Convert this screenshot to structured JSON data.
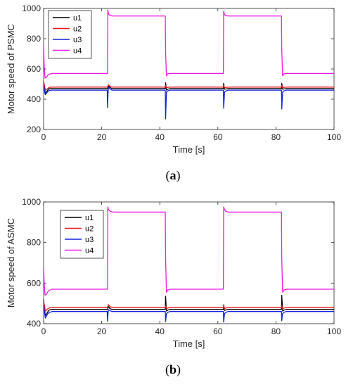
{
  "chart_data": [
    {
      "type": "line",
      "caption_letter": "a",
      "xlabel": "Time [s]",
      "ylabel": "Motor speed of PSMC",
      "xlim": [
        0,
        100
      ],
      "ylim": [
        200,
        1000
      ],
      "xticks": [
        "0",
        "20",
        "40",
        "60",
        "80",
        "100"
      ],
      "yticks": [
        "200",
        "400",
        "600",
        "800",
        "1000"
      ],
      "legend_position": "top-left",
      "grid": false,
      "series": [
        {
          "name": "u1",
          "color": "#000000",
          "x": [
            0,
            0.3,
            0.6,
            1.0,
            1.5,
            2.0,
            3.0,
            22.0,
            22.3,
            22.8,
            23.5,
            30,
            41.9,
            42.0,
            42.3,
            42.8,
            43.5,
            50,
            61.9,
            62.0,
            62.3,
            62.8,
            63.5,
            70,
            81.9,
            82.0,
            82.3,
            82.8,
            83.5,
            100
          ],
          "y": [
            520,
            470,
            440,
            450,
            462,
            470,
            470,
            470,
            490,
            478,
            470,
            470,
            470,
            510,
            460,
            466,
            470,
            470,
            470,
            505,
            466,
            468,
            470,
            470,
            470,
            505,
            466,
            468,
            470,
            470
          ]
        },
        {
          "name": "u2",
          "color": "#e8141c",
          "x": [
            0,
            0.3,
            0.6,
            1.0,
            1.5,
            2.0,
            3.0,
            22.0,
            22.3,
            22.8,
            23.5,
            30,
            41.9,
            42.0,
            42.3,
            42.8,
            43.5,
            50,
            61.9,
            62.0,
            62.3,
            62.8,
            63.5,
            70,
            81.9,
            82.0,
            82.3,
            82.8,
            83.5,
            100
          ],
          "y": [
            520,
            490,
            460,
            465,
            472,
            478,
            480,
            480,
            496,
            486,
            480,
            480,
            480,
            490,
            476,
            478,
            480,
            480,
            480,
            490,
            476,
            478,
            480,
            480,
            480,
            490,
            476,
            478,
            480,
            480
          ]
        },
        {
          "name": "u3",
          "color": "#1220e0",
          "x": [
            0,
            0.3,
            0.6,
            1.0,
            1.5,
            2.0,
            3.0,
            21.9,
            22.0,
            22.3,
            22.8,
            23.5,
            41.9,
            42.0,
            42.3,
            42.8,
            43.5,
            61.9,
            62.0,
            62.3,
            62.8,
            63.5,
            81.9,
            82.0,
            82.3,
            82.8,
            83.5,
            100
          ],
          "y": [
            500,
            455,
            430,
            440,
            452,
            458,
            460,
            460,
            345,
            480,
            468,
            460,
            460,
            270,
            448,
            455,
            460,
            460,
            340,
            448,
            455,
            460,
            460,
            335,
            448,
            455,
            460,
            460
          ]
        },
        {
          "name": "u4",
          "color": "#ee1be6",
          "x": [
            0,
            0.2,
            0.5,
            1.0,
            1.5,
            2.0,
            3.0,
            22.0,
            22.1,
            22.4,
            23.0,
            24.0,
            41.9,
            42.0,
            42.3,
            42.8,
            43.8,
            61.9,
            62.0,
            62.3,
            62.8,
            63.8,
            81.9,
            82.0,
            82.3,
            82.8,
            83.8,
            100
          ],
          "y": [
            760,
            620,
            540,
            545,
            560,
            566,
            570,
            570,
            990,
            962,
            952,
            950,
            950,
            710,
            555,
            568,
            570,
            570,
            980,
            960,
            952,
            950,
            950,
            720,
            555,
            568,
            570,
            570
          ]
        }
      ]
    },
    {
      "type": "line",
      "caption_letter": "b",
      "xlabel": "Time [s]",
      "ylabel": "Motor speed of ASMC",
      "xlim": [
        0,
        100
      ],
      "ylim": [
        400,
        1000
      ],
      "xticks": [
        "0",
        "20",
        "40",
        "60",
        "80",
        "100"
      ],
      "yticks": [
        "400",
        "600",
        "800",
        "1000"
      ],
      "legend_position": "top-left",
      "grid": false,
      "series": [
        {
          "name": "u1",
          "color": "#000000",
          "x": [
            0,
            0.3,
            0.6,
            1.0,
            1.5,
            2.0,
            3.0,
            22.0,
            22.3,
            22.8,
            23.5,
            41.9,
            42.0,
            42.3,
            42.8,
            43.5,
            61.9,
            62.0,
            62.3,
            62.8,
            63.5,
            81.9,
            82.0,
            82.3,
            82.8,
            83.5,
            100
          ],
          "y": [
            520,
            470,
            440,
            448,
            460,
            468,
            470,
            470,
            485,
            475,
            470,
            470,
            535,
            462,
            467,
            470,
            470,
            480,
            465,
            468,
            470,
            470,
            540,
            462,
            467,
            470,
            470
          ]
        },
        {
          "name": "u2",
          "color": "#e8141c",
          "x": [
            0,
            0.3,
            0.6,
            1.0,
            1.5,
            2.0,
            3.0,
            22.0,
            22.3,
            22.8,
            23.5,
            41.9,
            42.0,
            42.3,
            42.8,
            43.5,
            61.9,
            62.0,
            62.3,
            62.8,
            63.5,
            81.9,
            82.0,
            82.3,
            82.8,
            83.5,
            100
          ],
          "y": [
            510,
            490,
            462,
            468,
            474,
            478,
            480,
            480,
            494,
            485,
            480,
            480,
            488,
            474,
            477,
            480,
            480,
            494,
            474,
            477,
            480,
            480,
            488,
            474,
            477,
            480,
            480
          ]
        },
        {
          "name": "u3",
          "color": "#1220e0",
          "x": [
            0,
            0.3,
            0.6,
            1.0,
            1.5,
            2.0,
            3.0,
            21.9,
            22.0,
            22.3,
            22.8,
            23.5,
            41.9,
            42.0,
            42.3,
            42.8,
            43.5,
            61.9,
            62.0,
            62.3,
            62.8,
            63.5,
            81.9,
            82.0,
            82.3,
            82.8,
            83.5,
            100
          ],
          "y": [
            500,
            455,
            428,
            438,
            450,
            456,
            460,
            460,
            412,
            470,
            464,
            460,
            460,
            410,
            450,
            456,
            460,
            460,
            408,
            450,
            456,
            460,
            460,
            415,
            450,
            456,
            460,
            460
          ]
        },
        {
          "name": "u4",
          "color": "#ee1be6",
          "x": [
            0,
            0.2,
            0.5,
            1.0,
            1.5,
            2.0,
            3.0,
            22.0,
            22.1,
            22.4,
            23.0,
            24.0,
            41.9,
            42.0,
            42.3,
            42.8,
            43.8,
            61.9,
            62.0,
            62.3,
            62.8,
            63.8,
            81.9,
            82.0,
            82.3,
            82.8,
            83.8,
            100
          ],
          "y": [
            675,
            600,
            540,
            545,
            558,
            565,
            570,
            570,
            975,
            962,
            953,
            950,
            950,
            720,
            555,
            566,
            570,
            570,
            975,
            962,
            953,
            950,
            950,
            720,
            555,
            566,
            570,
            570
          ]
        }
      ]
    }
  ]
}
